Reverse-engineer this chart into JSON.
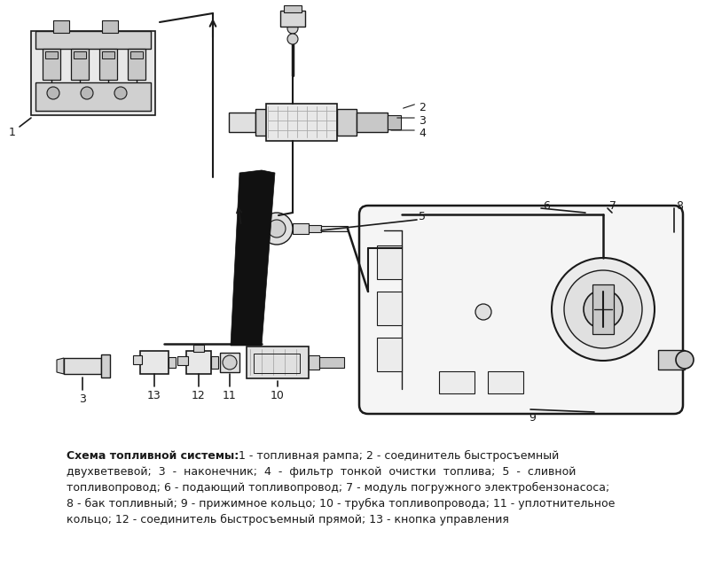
{
  "bg_color": "#ffffff",
  "fig_width": 7.96,
  "fig_height": 6.5,
  "dpi": 100,
  "line_color": "#1a1a1a",
  "text_color": "#000000",
  "gray_fill": "#d8d8d8",
  "light_fill": "#f0f0f0",
  "caption_line1_bold": "Схема топливной системы:",
  "caption_line1_rest": " 1 - топливная рампа; 2 - соединитель быстросъемный",
  "caption_line2": "двухветвевой;  3  -  наконечник;  4  -  фильтр  тонкой  очистки  топлива;  5  -  сливной",
  "caption_line3": "топливопровод; 6 - подающий топливопровод; 7 - модуль погружного электробензонасоса;",
  "caption_line4": "8 - бак топливный; 9 - прижимное кольцо; 10 - трубка топливопровода; 11 - уплотнительное",
  "caption_line5": "кольцо; 12 - соединитель быстросъемный прямой; 13 - кнопка управления"
}
